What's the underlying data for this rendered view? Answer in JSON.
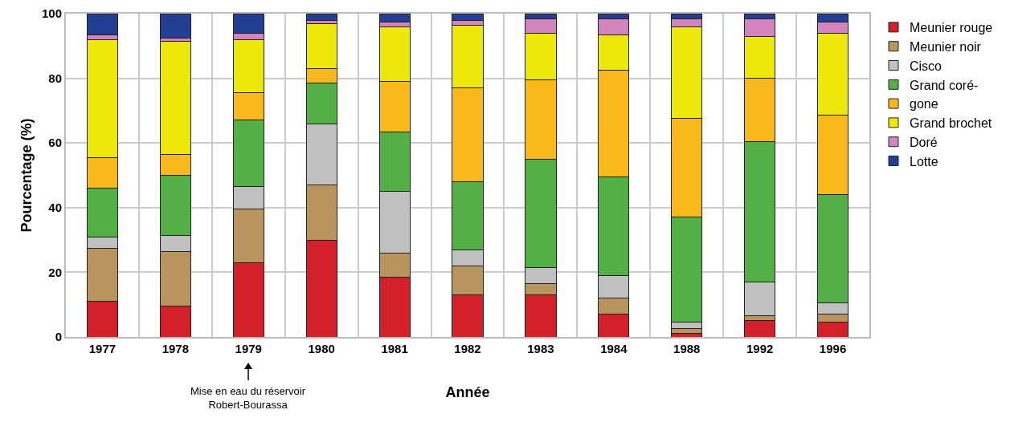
{
  "chart_data": {
    "type": "bar",
    "stacked": true,
    "xlabel": "Année",
    "ylabel": "Pourcentage (%)",
    "categories": [
      "1977",
      "1978",
      "1979",
      "1980",
      "1981",
      "1982",
      "1983",
      "1984",
      "1988",
      "1992",
      "1996"
    ],
    "series": [
      {
        "name": "Meunier rouge",
        "color": "#d42129",
        "values": [
          11,
          9.5,
          23,
          30,
          18.5,
          13,
          13,
          7,
          1,
          5,
          4.5
        ]
      },
      {
        "name": "Meunier noir",
        "color": "#b8955e",
        "values": [
          16.5,
          17,
          16.5,
          17,
          7.5,
          9,
          3.5,
          5,
          1.5,
          1.5,
          2.5
        ]
      },
      {
        "name": "Cisco",
        "color": "#c0c0c0",
        "values": [
          3.5,
          5,
          7,
          19,
          19,
          5,
          5,
          7,
          2,
          10.5,
          3.5
        ]
      },
      {
        "name": "Grand coré-",
        "color": "#52b047",
        "values": [
          15,
          18.5,
          20.5,
          12.5,
          18.5,
          21,
          33.5,
          30.5,
          32.5,
          43.5,
          33.5
        ]
      },
      {
        "name": "gone",
        "color": "#f9b91a",
        "values": [
          9.5,
          6.5,
          8.5,
          4.5,
          15.5,
          29,
          24.5,
          33,
          30.5,
          19.5,
          24.5
        ]
      },
      {
        "name": "Grand brochet",
        "color": "#ede80a",
        "values": [
          36.5,
          35,
          16.5,
          14,
          17,
          19.5,
          14.5,
          11,
          28.5,
          13,
          25.5
        ]
      },
      {
        "name": "Doré",
        "color": "#d484bd",
        "values": [
          1.5,
          1,
          2,
          1,
          1.5,
          1.5,
          4.5,
          5,
          2.5,
          5.5,
          3.5
        ]
      },
      {
        "name": "Lotte",
        "color": "#233f93",
        "values": [
          6.5,
          7.5,
          6,
          2,
          2.5,
          2,
          1.5,
          1.5,
          1.5,
          1.5,
          2.5
        ]
      }
    ],
    "ylim": [
      0,
      100
    ],
    "yticks": [
      0,
      20,
      40,
      60,
      80,
      100
    ],
    "grid": true,
    "legend": "right",
    "annotations": [
      "Mise en eau du réservoir\nRobert-Bourassa"
    ]
  }
}
